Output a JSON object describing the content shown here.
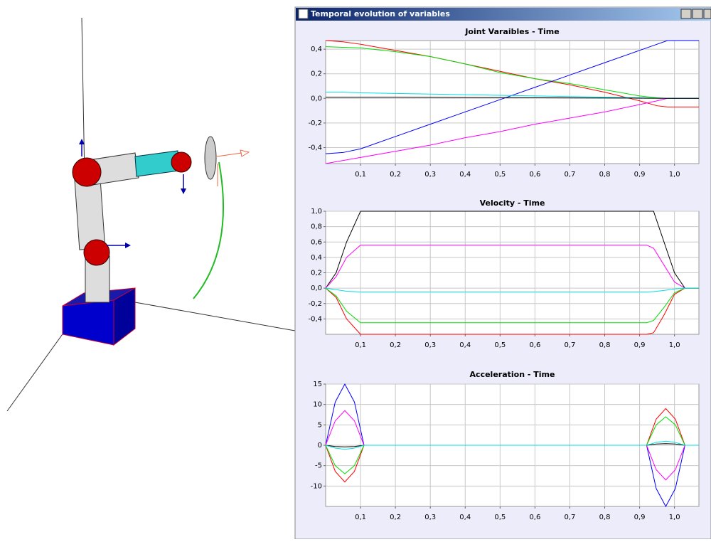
{
  "window_title": "Temporal evolution of variables",
  "chart_data": [
    {
      "type": "line",
      "title": "Joint Varaibles - Time",
      "x": [
        0,
        0.05,
        0.1,
        0.2,
        0.3,
        0.4,
        0.5,
        0.6,
        0.7,
        0.8,
        0.9,
        0.95,
        0.98,
        1.07
      ],
      "xlim": [
        0,
        1.07
      ],
      "xticks": [
        {
          "value": 0.1,
          "label": "0,1"
        },
        {
          "value": 0.2,
          "label": "0,2"
        },
        {
          "value": 0.3,
          "label": "0,3"
        },
        {
          "value": 0.4,
          "label": "0,4"
        },
        {
          "value": 0.5,
          "label": "0,5"
        },
        {
          "value": 0.6,
          "label": "0,6"
        },
        {
          "value": 0.7,
          "label": "0,7"
        },
        {
          "value": 0.8,
          "label": "0,8"
        },
        {
          "value": 0.9,
          "label": "0,9"
        },
        {
          "value": 1.0,
          "label": "1,0"
        }
      ],
      "ylim": [
        -0.53,
        0.47
      ],
      "yticks": [
        {
          "value": 0.4,
          "label": "0,4"
        },
        {
          "value": 0.2,
          "label": "0,2"
        },
        {
          "value": 0,
          "label": "0,0"
        },
        {
          "value": -0.2,
          "label": "-0,2"
        },
        {
          "value": -0.4,
          "label": "-0,4"
        }
      ],
      "grid": true,
      "series": [
        {
          "color": "#ff0000",
          "values": [
            0.47,
            0.46,
            0.44,
            0.39,
            0.34,
            0.28,
            0.22,
            0.16,
            0.11,
            0.05,
            -0.02,
            -0.06,
            -0.07,
            -0.07
          ]
        },
        {
          "color": "#00dd00",
          "values": [
            0.42,
            0.415,
            0.41,
            0.38,
            0.34,
            0.28,
            0.21,
            0.16,
            0.12,
            0.07,
            0.02,
            0.005,
            0,
            0
          ]
        },
        {
          "color": "#0000ff",
          "values": [
            -0.45,
            -0.44,
            -0.41,
            -0.31,
            -0.21,
            -0.11,
            -0.01,
            0.09,
            0.19,
            0.29,
            0.39,
            0.44,
            0.47,
            0.47
          ]
        },
        {
          "color": "#ff00ff",
          "values": [
            -0.53,
            -0.505,
            -0.48,
            -0.43,
            -0.38,
            -0.32,
            -0.27,
            -0.21,
            -0.16,
            -0.11,
            -0.05,
            -0.02,
            0,
            0
          ]
        },
        {
          "color": "#00e0e0",
          "values": [
            0.05,
            0.05,
            0.045,
            0.04,
            0.035,
            0.03,
            0.025,
            0.02,
            0.015,
            0.01,
            0.005,
            0.002,
            0,
            0
          ]
        },
        {
          "color": "#000000",
          "values": [
            0.01,
            0.01,
            0.01,
            0.01,
            0.008,
            0.007,
            0.006,
            0.005,
            0.004,
            0.003,
            0.002,
            0.001,
            0,
            0
          ]
        }
      ]
    },
    {
      "type": "line",
      "title": "Velocity - Time",
      "x": [
        0,
        0.03,
        0.06,
        0.1,
        0.12,
        0.5,
        0.92,
        0.94,
        0.97,
        1.0,
        1.03,
        1.07
      ],
      "xlim": [
        0,
        1.07
      ],
      "xticks": [
        {
          "value": 0.1,
          "label": "0,1"
        },
        {
          "value": 0.2,
          "label": "0,2"
        },
        {
          "value": 0.3,
          "label": "0,3"
        },
        {
          "value": 0.4,
          "label": "0,4"
        },
        {
          "value": 0.5,
          "label": "0,5"
        },
        {
          "value": 0.6,
          "label": "0,6"
        },
        {
          "value": 0.7,
          "label": "0,7"
        },
        {
          "value": 0.8,
          "label": "0,8"
        },
        {
          "value": 0.9,
          "label": "0,9"
        },
        {
          "value": 1.0,
          "label": "1,0"
        }
      ],
      "ylim": [
        -0.6,
        1.0
      ],
      "yticks": [
        {
          "value": 1.0,
          "label": "1,0"
        },
        {
          "value": 0.8,
          "label": "0,8"
        },
        {
          "value": 0.6,
          "label": "0,6"
        },
        {
          "value": 0.4,
          "label": "0,4"
        },
        {
          "value": 0.2,
          "label": "0,2"
        },
        {
          "value": 0,
          "label": "0,0"
        },
        {
          "value": -0.2,
          "label": "-0,2"
        },
        {
          "value": -0.4,
          "label": "-0,4"
        }
      ],
      "grid": true,
      "series": [
        {
          "color": "#000000",
          "values": [
            0,
            0.2,
            0.6,
            1.0,
            1.0,
            1.0,
            1.0,
            1.0,
            0.6,
            0.2,
            0,
            0
          ]
        },
        {
          "color": "#ff00ff",
          "values": [
            0,
            0.15,
            0.4,
            0.56,
            0.56,
            0.56,
            0.56,
            0.52,
            0.3,
            0.08,
            0,
            0
          ]
        },
        {
          "color": "#ff0000",
          "values": [
            0,
            -0.12,
            -0.4,
            -0.6,
            -0.6,
            -0.6,
            -0.6,
            -0.58,
            -0.35,
            -0.08,
            0,
            0
          ]
        },
        {
          "color": "#00dd00",
          "values": [
            0,
            -0.1,
            -0.3,
            -0.45,
            -0.45,
            -0.45,
            -0.45,
            -0.42,
            -0.25,
            -0.06,
            0,
            0
          ]
        },
        {
          "color": "#00e0e0",
          "values": [
            0,
            -0.02,
            -0.04,
            -0.05,
            -0.05,
            -0.05,
            -0.05,
            -0.045,
            -0.03,
            -0.01,
            0,
            0
          ]
        }
      ]
    },
    {
      "type": "line",
      "title": "Acceleration - Time",
      "x": [
        0,
        0.0275,
        0.055,
        0.0825,
        0.11,
        0.92,
        0.9475,
        0.975,
        1.0025,
        1.03,
        1.07
      ],
      "xlim": [
        0,
        1.07
      ],
      "xticks": [
        {
          "value": 0.1,
          "label": "0,1"
        },
        {
          "value": 0.2,
          "label": "0,2"
        },
        {
          "value": 0.3,
          "label": "0,3"
        },
        {
          "value": 0.4,
          "label": "0,4"
        },
        {
          "value": 0.5,
          "label": "0,5"
        },
        {
          "value": 0.6,
          "label": "0,6"
        },
        {
          "value": 0.7,
          "label": "0,7"
        },
        {
          "value": 0.8,
          "label": "0,8"
        },
        {
          "value": 0.9,
          "label": "0,9"
        },
        {
          "value": 1.0,
          "label": "1,0"
        }
      ],
      "ylim": [
        -15,
        15
      ],
      "yticks": [
        15,
        10,
        5,
        0,
        -5,
        -10
      ],
      "grid": true,
      "series": [
        {
          "color": "#0000ff",
          "values": [
            0,
            10.6,
            15,
            10.6,
            0,
            0,
            -10.6,
            -15,
            -10.6,
            0,
            0
          ]
        },
        {
          "color": "#ff00ff",
          "values": [
            0,
            6,
            8.5,
            6,
            0,
            0,
            -6,
            -8.5,
            -6,
            0,
            0
          ]
        },
        {
          "color": "#ff0000",
          "values": [
            0,
            -6.4,
            -9,
            -6.4,
            0,
            0,
            6.4,
            9,
            6.4,
            0,
            0
          ]
        },
        {
          "color": "#00dd00",
          "values": [
            0,
            -5,
            -7,
            -5,
            0,
            0,
            5,
            7,
            5,
            0,
            0
          ]
        },
        {
          "color": "#000000",
          "values": [
            0,
            -0.3,
            -0.4,
            -0.3,
            0,
            0,
            0.3,
            0.4,
            0.3,
            0,
            0
          ]
        },
        {
          "color": "#00e0e0",
          "values": [
            0,
            -0.7,
            -1,
            -0.7,
            0,
            0,
            0.7,
            1,
            0.7,
            0,
            0
          ]
        }
      ]
    }
  ]
}
